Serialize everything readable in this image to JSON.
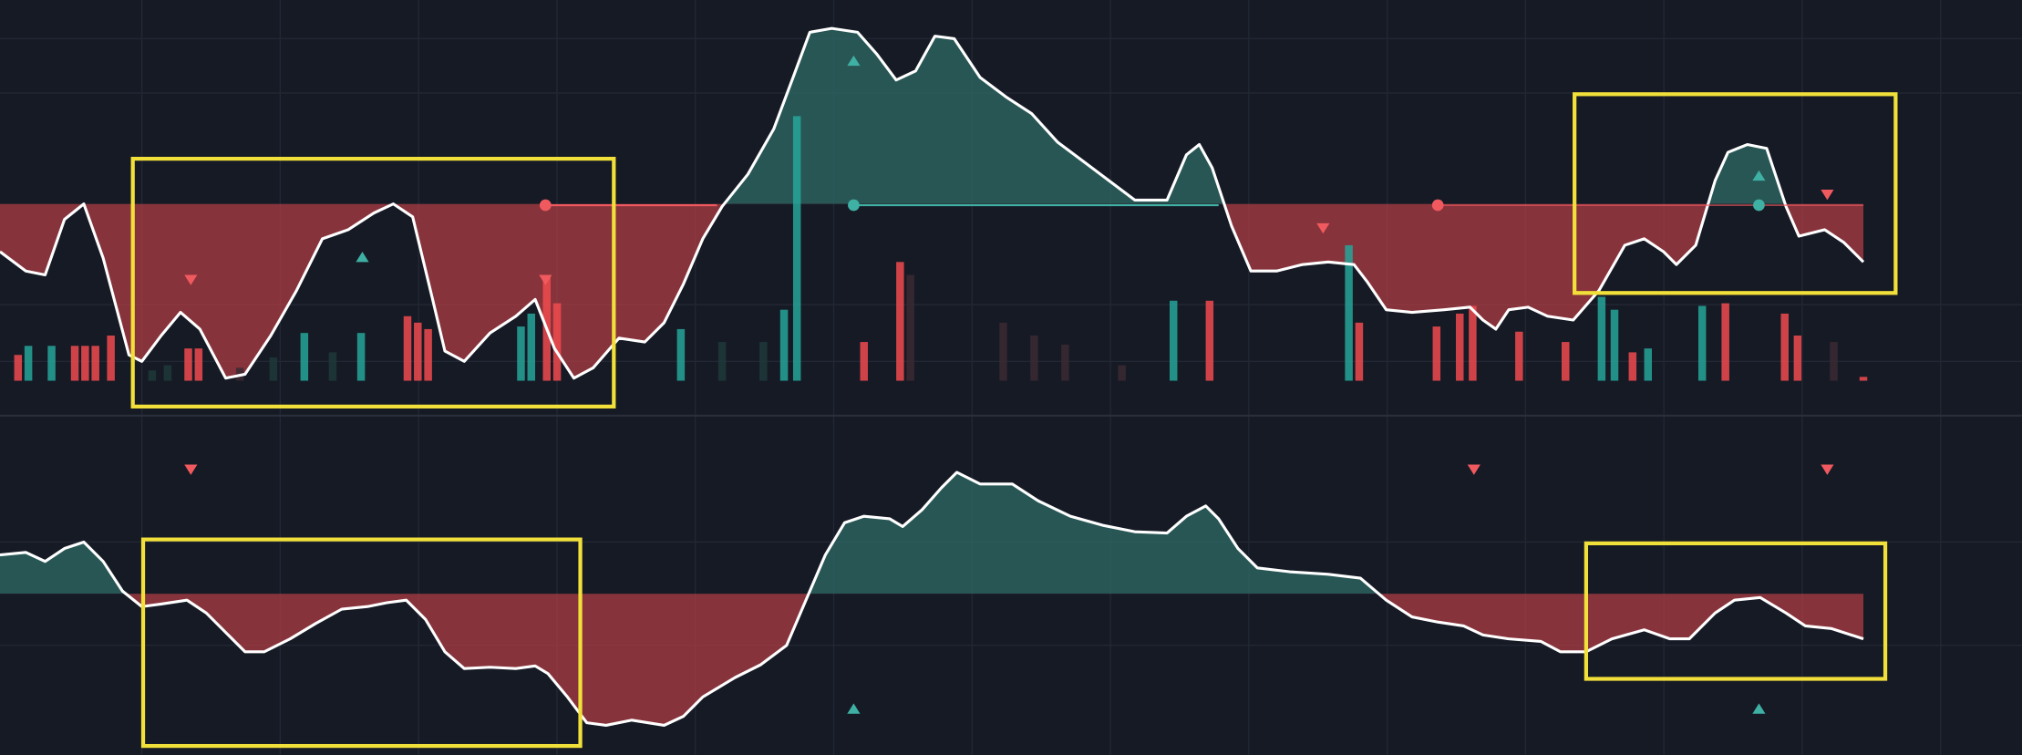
{
  "chart_data": [
    {
      "type": "line",
      "x": [
        0,
        20,
        35,
        50,
        65,
        80,
        100,
        110,
        125,
        140,
        155,
        175,
        190,
        210,
        230,
        250,
        270,
        290,
        305,
        320,
        335,
        345,
        360,
        380,
        400,
        415,
        430,
        445,
        460,
        480,
        500,
        515,
        530,
        545,
        560,
        580,
        600,
        615,
        628,
        645,
        665,
        680,
        695,
        710,
        725,
        740,
        760,
        780,
        800,
        820,
        840,
        860,
        880,
        905,
        920,
        930,
        940,
        955,
        970,
        990,
        1010,
        1030,
        1050,
        1060,
        1075,
        1095,
        1120,
        1140,
        1150,
        1160,
        1170,
        1185,
        1200,
        1220,
        1240,
        1260,
        1275,
        1290,
        1300,
        1315,
        1330,
        1340,
        1355,
        1370,
        1385,
        1395,
        1415,
        1430,
        1445
      ],
      "series": [
        {
          "color": "#ffffff",
          "values": [
            125,
            110,
            107,
            150,
            162,
            120,
            45,
            40,
            60,
            78,
            65,
            27,
            30,
            60,
            95,
            135,
            142,
            155,
            162,
            152,
            90,
            48,
            40,
            62,
            75,
            88,
            50,
            27,
            35,
            58,
            55,
            70,
            100,
            135,
            160,
            185,
            220,
            260,
            295,
            298,
            295,
            278,
            258,
            265,
            292,
            290,
            260,
            245,
            232,
            210,
            195,
            180,
            165,
            165,
            200,
            208,
            190,
            145,
            110,
            110,
            115,
            117,
            115,
            102,
            80,
            78,
            80,
            82,
            72,
            65,
            80,
            82,
            75,
            72,
            95,
            130,
            135,
            125,
            115,
            130,
            180,
            202,
            208,
            205,
            160,
            137,
            142,
            132,
            117
          ]
        }
      ],
      "baseline": 162,
      "xlim": [
        0,
        1568
      ],
      "ylim": [
        0,
        320
      ],
      "volume": {
        "axis": "y2",
        "x": [
          14,
          22,
          40,
          58,
          66,
          74,
          86,
          118,
          130,
          146,
          154,
          186,
          212,
          236,
          258,
          280,
          316,
          324,
          332,
          404,
          412,
          424,
          432,
          528,
          560,
          592,
          608,
          618,
          670,
          698,
          706,
          778,
          802,
          826,
          870,
          910,
          938,
          1046,
          1054,
          1114,
          1132,
          1142,
          1178,
          1214,
          1242,
          1252,
          1266,
          1278,
          1320,
          1338,
          1384,
          1394,
          1422,
          1445
        ],
        "values": [
          20,
          27,
          27,
          27,
          27,
          27,
          35,
          8,
          12,
          25,
          25,
          10,
          18,
          37,
          22,
          37,
          50,
          45,
          40,
          42,
          52,
          82,
          60,
          40,
          30,
          30,
          55,
          205,
          30,
          92,
          82,
          45,
          35,
          28,
          12,
          62,
          62,
          105,
          45,
          42,
          52,
          58,
          38,
          30,
          65,
          55,
          22,
          25,
          58,
          60,
          52,
          35,
          30,
          3
        ],
        "colors": [
          "#f04b4f",
          "#26a69a",
          "#26a69a",
          "#f04b4f",
          "#f04b4f",
          "#f04b4f",
          "#f04b4f",
          "#1f3a3a",
          "#1f3a3a",
          "#f04b4f",
          "#f04b4f",
          "#3a2a33",
          "#1f3a3a",
          "#26a69a",
          "#1f3a3a",
          "#26a69a",
          "#f04b4f",
          "#f04b4f",
          "#f04b4f",
          "#26a69a",
          "#26a69a",
          "#f04b4f",
          "#f04b4f",
          "#26a69a",
          "#1f3a3a",
          "#1f3a3a",
          "#26a69a",
          "#26a69a",
          "#f04b4f",
          "#f04b4f",
          "#3a2a33",
          "#3a2a33",
          "#3a2a33",
          "#3a2a33",
          "#3a2a33",
          "#26a69a",
          "#f04b4f",
          "#26a69a",
          "#f04b4f",
          "#f04b4f",
          "#f04b4f",
          "#f04b4f",
          "#f04b4f",
          "#f04b4f",
          "#26a69a",
          "#26a69a",
          "#f04b4f",
          "#26a69a",
          "#26a69a",
          "#f04b4f",
          "#f04b4f",
          "#f04b4f",
          "#3a2a33",
          "#f04b4f"
        ]
      },
      "y2lim": [
        0,
        295
      ],
      "up_color": "#2f6b65",
      "down_color": "#b83e45",
      "grid": true
    },
    {
      "type": "line",
      "x": [
        0,
        20,
        35,
        50,
        65,
        80,
        95,
        110,
        125,
        145,
        160,
        175,
        190,
        205,
        225,
        245,
        265,
        285,
        300,
        315,
        330,
        345,
        360,
        380,
        400,
        415,
        425,
        440,
        455,
        470,
        490,
        515,
        530,
        545,
        570,
        590,
        610,
        625,
        640,
        655,
        670,
        690,
        700,
        715,
        730,
        742,
        760,
        785,
        805,
        830,
        855,
        880,
        905,
        920,
        935,
        945,
        960,
        975,
        1000,
        1030,
        1055,
        1075,
        1095,
        1115,
        1135,
        1150,
        1170,
        1195,
        1210,
        1230,
        1250,
        1275,
        1295,
        1310,
        1330,
        1345,
        1365,
        1385,
        1400,
        1420,
        1445
      ],
      "series": [
        {
          "color": "#ffffff",
          "values": [
            155,
            157,
            150,
            160,
            165,
            150,
            127,
            115,
            117,
            120,
            110,
            95,
            80,
            80,
            90,
            102,
            113,
            115,
            118,
            120,
            105,
            80,
            67,
            68,
            67,
            69,
            63,
            45,
            25,
            23,
            27,
            23,
            30,
            45,
            60,
            70,
            85,
            120,
            155,
            180,
            185,
            183,
            177,
            190,
            207,
            219,
            210,
            210,
            197,
            185,
            178,
            173,
            172,
            185,
            193,
            183,
            160,
            145,
            142,
            140,
            137,
            120,
            107,
            103,
            100,
            93,
            90,
            88,
            80,
            80,
            90,
            97,
            90,
            90,
            110,
            120,
            122,
            110,
            100,
            98,
            90
          ]
        }
      ],
      "baseline": 125,
      "xlim": [
        0,
        1568
      ],
      "ylim": [
        0,
        265
      ],
      "up_color": "#2f6b65",
      "down_color": "#b83e45",
      "grid": true
    }
  ]
}
